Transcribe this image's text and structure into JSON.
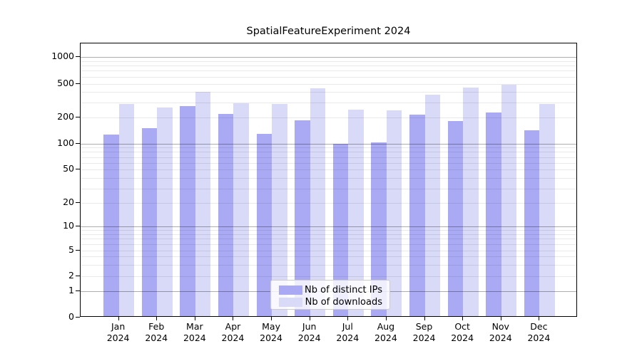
{
  "title": "SpatialFeatureExperiment 2024",
  "legend": {
    "items": [
      {
        "label": "Nb of distinct IPs",
        "color": "#a9a9f4"
      },
      {
        "label": "Nb of downloads",
        "color": "#d9d9f8"
      }
    ]
  },
  "chart_data": {
    "type": "bar",
    "title": "SpatialFeatureExperiment 2024",
    "categories": [
      "Jan",
      "Feb",
      "Mar",
      "Apr",
      "May",
      "Jun",
      "Jul",
      "Aug",
      "Sep",
      "Oct",
      "Nov",
      "Dec"
    ],
    "category_year": "2024",
    "series": [
      {
        "name": "Nb of distinct IPs",
        "color": "#a9a9f4",
        "values": [
          127,
          151,
          275,
          220,
          131,
          187,
          100,
          104,
          218,
          183,
          230,
          144
        ]
      },
      {
        "name": "Nb of downloads",
        "color": "#d9d9f8",
        "values": [
          290,
          263,
          400,
          294,
          290,
          445,
          247,
          242,
          372,
          450,
          488,
          292
        ]
      }
    ],
    "xlabel": "",
    "ylabel": "",
    "yscale": "log-with-zero (symlog-like)",
    "y_tick_values": [
      0,
      1,
      2,
      5,
      10,
      20,
      50,
      100,
      200,
      500,
      1000
    ],
    "major_grid_values": [
      1,
      10,
      100,
      1000
    ],
    "minor_grid_values": [
      2,
      3,
      4,
      5,
      6,
      7,
      8,
      9,
      20,
      30,
      40,
      50,
      60,
      70,
      80,
      90,
      200,
      300,
      400,
      500,
      600,
      700,
      800,
      900
    ],
    "ylim": [
      0,
      1300
    ],
    "grid": true,
    "legend_position": "lower center"
  }
}
